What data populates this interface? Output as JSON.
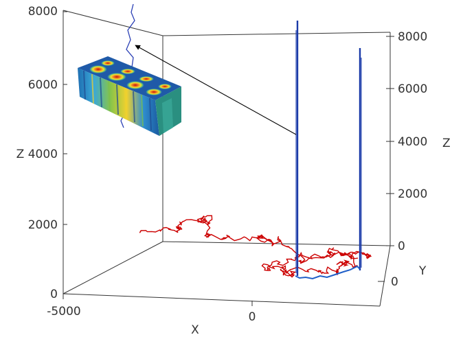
{
  "chart_data": {
    "type": "line3d",
    "title": "",
    "x_axis": {
      "label": "X",
      "ticks": [
        {
          "value": -5000,
          "label": "-5000"
        },
        {
          "value": 0,
          "label": "0"
        }
      ]
    },
    "y_axis": {
      "label": "Y",
      "ticks": [
        {
          "value": 0,
          "label": "0"
        }
      ]
    },
    "z_axis": {
      "label": "Z",
      "left_ticks": [
        {
          "value": 0,
          "label": "0"
        },
        {
          "value": 2000,
          "label": "2000"
        },
        {
          "value": 4000,
          "label": "Z 4000"
        },
        {
          "value": 6000,
          "label": "6000"
        },
        {
          "value": 8000,
          "label": "8000"
        }
      ],
      "right_ticks": [
        {
          "value": 0,
          "label": "0"
        },
        {
          "value": 2000,
          "label": "2000"
        },
        {
          "value": 4000,
          "label": "4000"
        },
        {
          "value": 6000,
          "label": "6000"
        },
        {
          "value": 8000,
          "label": "8000"
        }
      ],
      "zlim": [
        0,
        8000
      ]
    },
    "series": [
      {
        "color": "#cc0000",
        "description": "random-walk trajectory near Z=0"
      },
      {
        "color": "#1a3aa8",
        "description": "vertical trajectories rising to about Z=8000"
      }
    ],
    "inset": {
      "type": "3d-box",
      "colormap": "jet",
      "pattern": "periodic blobs"
    },
    "annotation": {
      "type": "arrow",
      "from": "vertical trajectory",
      "to": "inset trajectory"
    },
    "colors": {
      "red_walk": "#cc0000",
      "blue_line": "#1a3aa8",
      "axes": "#333333"
    }
  }
}
